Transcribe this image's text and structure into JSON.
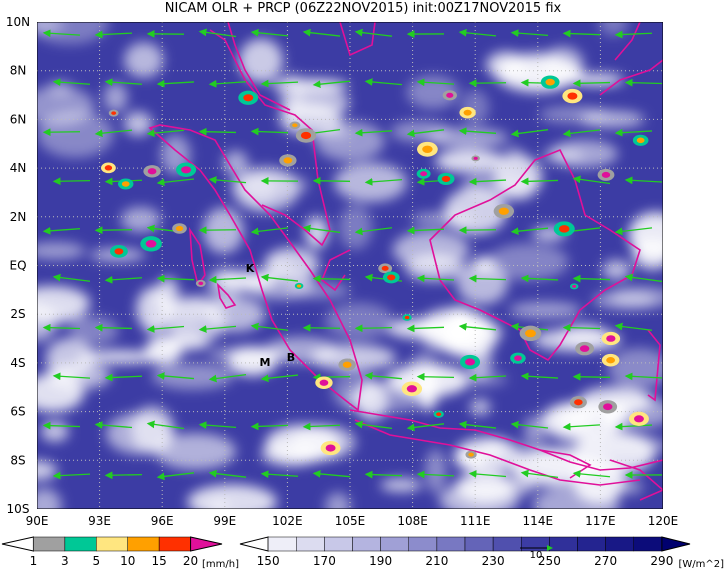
{
  "title": "NICAM OLR + PRCP (06Z22NOV2015) init:00Z17NOV2015 fix",
  "lat_labels": [
    "10N",
    "8N",
    "6N",
    "4N",
    "2N",
    "EQ",
    "2S",
    "4S",
    "6S",
    "8S",
    "10S"
  ],
  "lon_labels": [
    "90E",
    "93E",
    "96E",
    "99E",
    "102E",
    "105E",
    "108E",
    "111E",
    "114E",
    "117E",
    "120E"
  ],
  "place_labels": [
    "K",
    "M",
    "B"
  ],
  "prcp_legend": {
    "labels": [
      "1",
      "3",
      "5",
      "10",
      "15",
      "20"
    ],
    "unit": "[mm/h]",
    "colors": [
      "#ffffff",
      "#a0a0a0",
      "#00c896",
      "#ffe680",
      "#ffa000",
      "#ff3000",
      "#e0109a"
    ]
  },
  "olr_legend": {
    "labels": [
      "150",
      "170",
      "190",
      "210",
      "230",
      "250",
      "270",
      "290"
    ],
    "unit": "[W/m^2]",
    "colors": [
      "#ffffff",
      "#eeeef8",
      "#dcdcf0",
      "#c8c8e8",
      "#b4b4e0",
      "#a0a0d6",
      "#8c8ccc",
      "#7878c2",
      "#6464b8",
      "#5050ae",
      "#3c3ca4",
      "#30309a",
      "#242490",
      "#181886",
      "#0c0c7a",
      "#00006e"
    ]
  },
  "wind_ref": "10"
}
